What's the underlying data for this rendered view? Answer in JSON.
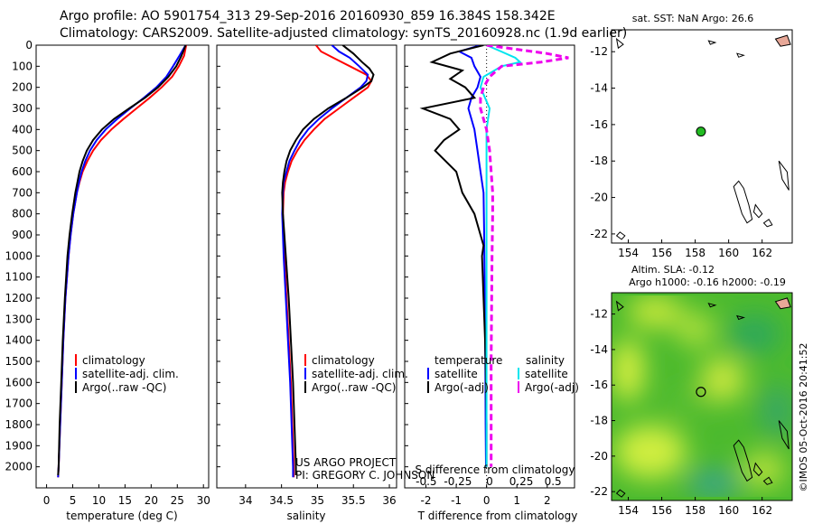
{
  "header": {
    "line1": "Argo profile: AO 5901754_313 29-Sep-2016 20160930_859 16.384S 158.342E",
    "line2": "Climatology: CARS2009. Satellite-adjusted climatology: synTS_20160928.nc (1.9d earlier)"
  },
  "credit": "US ARGO PROJECT",
  "pi": "PI: GREGORY C. JOHNSON",
  "stamp": "©IMOS 05-Oct-2016 20:41:52",
  "colors": {
    "climatology": "#ff0000",
    "satellite": "#0000ff",
    "argo": "#000000",
    "sal_satellite": "#00e5ee",
    "sal_argo": "#ee00ee",
    "coast_fill": "#e8a898",
    "float_marker": "#22bb22"
  },
  "chart_data": [
    {
      "type": "line",
      "xlabel": "temperature (deg C)",
      "ylabel": "",
      "xlim": [
        -2,
        31
      ],
      "ylim": [
        2100,
        0
      ],
      "xticks": [
        0,
        5,
        10,
        15,
        20,
        25,
        30
      ],
      "yticks": [
        0,
        100,
        200,
        300,
        400,
        500,
        600,
        700,
        800,
        900,
        1000,
        1100,
        1200,
        1300,
        1400,
        1500,
        1600,
        1700,
        1800,
        1900,
        2000
      ],
      "legend": [
        "climatology",
        "satellite-adj. clim.",
        "Argo(..raw -QC)"
      ],
      "legend_position": "lower-center",
      "series": [
        {
          "name": "climatology",
          "color": "#ff0000",
          "depth": [
            0,
            50,
            100,
            150,
            200,
            250,
            300,
            350,
            400,
            450,
            500,
            550,
            600,
            650,
            700,
            800,
            900,
            1000,
            1200,
            1400,
            1600,
            1800,
            2000,
            2050
          ],
          "values": [
            26.7,
            26.3,
            25.3,
            24.0,
            22.0,
            19.7,
            17.2,
            14.7,
            12.4,
            10.4,
            8.9,
            7.8,
            6.9,
            6.3,
            5.8,
            5.1,
            4.6,
            4.2,
            3.6,
            3.2,
            2.9,
            2.6,
            2.3,
            2.2
          ]
        },
        {
          "name": "satellite-adj. clim.",
          "color": "#0000ff",
          "depth": [
            0,
            50,
            100,
            150,
            200,
            250,
            300,
            350,
            400,
            450,
            500,
            550,
            600,
            650,
            700,
            800,
            900,
            1000,
            1200,
            1400,
            1600,
            1800,
            2000,
            2050
          ],
          "values": [
            26.6,
            25.4,
            24.2,
            22.9,
            21.0,
            18.6,
            16.0,
            13.5,
            11.3,
            9.6,
            8.3,
            7.4,
            6.7,
            6.2,
            5.8,
            5.1,
            4.6,
            4.2,
            3.6,
            3.2,
            2.9,
            2.6,
            2.3,
            2.2
          ]
        },
        {
          "name": "Argo(..raw -QC)",
          "color": "#000000",
          "depth": [
            0,
            50,
            100,
            150,
            200,
            250,
            300,
            350,
            400,
            450,
            500,
            550,
            600,
            650,
            700,
            800,
            900,
            1000,
            1200,
            1400,
            1600,
            1800,
            2000,
            2040
          ],
          "values": [
            26.6,
            25.8,
            24.8,
            23.3,
            21.3,
            18.8,
            15.8,
            12.9,
            10.6,
            8.9,
            7.7,
            6.9,
            6.3,
            5.9,
            5.5,
            4.9,
            4.4,
            4.0,
            3.5,
            3.1,
            2.8,
            2.5,
            2.3,
            2.2
          ]
        }
      ]
    },
    {
      "type": "line",
      "xlabel": "salinity",
      "ylabel": "",
      "xlim": [
        33.6,
        36.1
      ],
      "ylim": [
        2100,
        0
      ],
      "xticks": [
        34,
        34.5,
        35,
        35.5,
        36
      ],
      "legend": [
        "climatology",
        "satellite-adj. clim.",
        "Argo(..raw -QC)"
      ],
      "legend_position": "lower-center",
      "series": [
        {
          "name": "climatology",
          "color": "#ff0000",
          "depth": [
            0,
            30,
            60,
            100,
            140,
            170,
            200,
            250,
            300,
            350,
            400,
            450,
            500,
            550,
            600,
            650,
            700,
            800,
            1000,
            1200,
            1400,
            1600,
            1800,
            2000,
            2050
          ],
          "values": [
            34.98,
            35.05,
            35.22,
            35.45,
            35.68,
            35.75,
            35.7,
            35.5,
            35.3,
            35.1,
            34.95,
            34.82,
            34.72,
            34.64,
            34.59,
            34.55,
            34.53,
            34.52,
            34.54,
            34.57,
            34.6,
            34.63,
            34.65,
            34.67,
            34.67
          ]
        },
        {
          "name": "satellite-adj. clim.",
          "color": "#0000ff",
          "depth": [
            0,
            30,
            60,
            100,
            140,
            170,
            200,
            250,
            300,
            350,
            400,
            450,
            500,
            550,
            600,
            650,
            700,
            800,
            1000,
            1200,
            1400,
            1600,
            1800,
            2000,
            2050
          ],
          "values": [
            35.2,
            35.3,
            35.45,
            35.58,
            35.7,
            35.68,
            35.6,
            35.4,
            35.2,
            35.02,
            34.87,
            34.76,
            34.68,
            34.61,
            34.57,
            34.53,
            34.52,
            34.51,
            34.53,
            34.56,
            34.59,
            34.62,
            34.64,
            34.66,
            34.66
          ]
        },
        {
          "name": "Argo(..raw -QC)",
          "color": "#000000",
          "depth": [
            0,
            40,
            80,
            110,
            140,
            170,
            200,
            250,
            300,
            350,
            400,
            450,
            500,
            550,
            600,
            650,
            700,
            800,
            1000,
            1200,
            1400,
            1600,
            1800,
            2000,
            2040
          ],
          "values": [
            35.35,
            35.5,
            35.62,
            35.72,
            35.78,
            35.75,
            35.63,
            35.4,
            35.15,
            34.95,
            34.8,
            34.7,
            34.62,
            34.57,
            34.54,
            34.52,
            34.51,
            34.52,
            34.56,
            34.6,
            34.63,
            34.66,
            34.68,
            34.7,
            34.7
          ]
        }
      ]
    },
    {
      "type": "line",
      "xlabel": "T difference from climatology",
      "ylabel": "",
      "xlim": [
        -2.7,
        2.9
      ],
      "ylim": [
        2100,
        0
      ],
      "xticks": [
        -2,
        -1,
        0,
        1,
        2
      ],
      "xlabel_top": "S difference from climatology",
      "xticks_top": [
        -0.5,
        -0.25,
        0,
        0.25,
        0.5
      ],
      "legend_groups": [
        "temperature",
        "salinity"
      ],
      "legend": [
        "satellite",
        "Argo(-adj)",
        "satellite",
        "Argo(-adj)"
      ],
      "legend_position": "lower-center",
      "series": [
        {
          "name": "satellite",
          "group": "temperature",
          "color": "#0000ff",
          "dash": false,
          "depth": [
            0,
            30,
            60,
            100,
            150,
            200,
            250,
            300,
            400,
            500,
            600,
            700,
            900,
            1200,
            1500,
            1800,
            2000
          ],
          "values": [
            -0.2,
            -0.9,
            -0.5,
            -0.4,
            -0.2,
            -0.3,
            -0.5,
            -0.6,
            -0.4,
            -0.3,
            -0.2,
            -0.1,
            -0.08,
            -0.06,
            -0.04,
            -0.03,
            -0.02
          ]
        },
        {
          "name": "Argo(-adj)",
          "group": "temperature",
          "color": "#000000",
          "dash": false,
          "depth": [
            0,
            40,
            80,
            120,
            160,
            200,
            250,
            300,
            350,
            400,
            450,
            500,
            600,
            700,
            800,
            900,
            950,
            1000,
            1200,
            1400,
            1600,
            1800,
            2000
          ],
          "values": [
            -0.1,
            -1.2,
            -1.8,
            -0.8,
            -1.2,
            -0.7,
            -0.4,
            -2.1,
            -1.2,
            -0.9,
            -1.4,
            -1.7,
            -1.0,
            -0.8,
            -0.4,
            -0.2,
            -0.1,
            -0.15,
            -0.1,
            -0.05,
            -0.02,
            0.0,
            0.0
          ]
        },
        {
          "name": "satellite",
          "group": "salinity",
          "color": "#00e5ee",
          "dash": false,
          "depth": [
            0,
            30,
            60,
            80,
            100,
            150,
            200,
            300,
            400,
            500,
            600,
            700,
            800,
            1000,
            1500,
            2000
          ],
          "values": [
            0.0,
            0.48,
            0.95,
            1.1,
            0.5,
            -0.1,
            -0.2,
            0.1,
            0.0,
            0.0,
            0.0,
            0.0,
            0.0,
            0.0,
            0.0,
            0.0
          ]
        },
        {
          "name": "Argo(-adj)",
          "group": "salinity",
          "color": "#ee00ee",
          "dash": true,
          "depth": [
            0,
            40,
            60,
            80,
            100,
            150,
            200,
            250,
            300,
            400,
            500,
            600,
            700,
            800,
            1000,
            1500,
            2000
          ],
          "values": [
            0.0,
            2.0,
            2.7,
            1.8,
            0.5,
            0.1,
            -0.1,
            -0.2,
            -0.2,
            0.0,
            0.1,
            0.15,
            0.2,
            0.2,
            0.18,
            0.15,
            0.15
          ]
        }
      ]
    },
    {
      "type": "scatter",
      "title": "sat. SST: NaN Argo: 26.6",
      "xlabel": "",
      "ylabel": "",
      "xlim": [
        153,
        163.8
      ],
      "ylim": [
        -22.5,
        -10.8
      ],
      "xticks": [
        154,
        156,
        158,
        160,
        162
      ],
      "yticks": [
        -12,
        -14,
        -16,
        -18,
        -20,
        -22
      ],
      "point": {
        "lon": 158.342,
        "lat": -16.384
      }
    },
    {
      "type": "heatmap",
      "title": "Altim. SLA: -0.12",
      "subtitle": "Argo h1000: -0.16 h2000: -0.19",
      "xlabel": "",
      "ylabel": "",
      "xlim": [
        153,
        163.8
      ],
      "ylim": [
        -22.5,
        -10.8
      ],
      "xticks": [
        154,
        156,
        158,
        160,
        162
      ],
      "yticks": [
        -12,
        -14,
        -16,
        -18,
        -20,
        -22
      ],
      "point": {
        "lon": 158.342,
        "lat": -16.384
      }
    }
  ]
}
